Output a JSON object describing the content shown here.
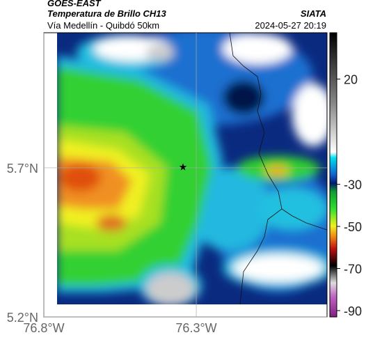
{
  "header": {
    "source": "GOES-EAST",
    "title": "Temperatura de Brillo CH13",
    "agency": "SIATA",
    "subtitle": "Vía Medellín - Quibdó 50km",
    "datetime": "2024-05-27 20:19"
  },
  "map": {
    "xlim": [
      -76.8,
      -75.871
    ],
    "ylim": [
      5.2,
      6.153
    ],
    "xticks": [
      {
        "value": -76.8,
        "label": "76.8°W"
      },
      {
        "value": -76.3,
        "label": "76.3°W"
      }
    ],
    "yticks": [
      {
        "value": 5.2,
        "label": "5.2°N"
      },
      {
        "value": 5.7,
        "label": "5.7°N"
      }
    ],
    "grid": true
  },
  "colorbar": {
    "lim": [
      42,
      -93
    ],
    "ticks": [
      20,
      -30,
      -50,
      -70,
      -90
    ]
  }
}
